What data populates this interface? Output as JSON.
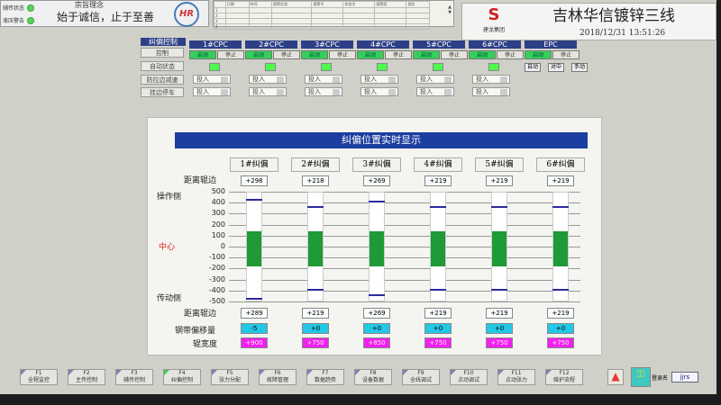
{
  "status": {
    "items": [
      {
        "label": "辅传状态",
        "color": "#5ed05e"
      },
      {
        "label": "液压警告",
        "color": "#5ed05e"
      }
    ]
  },
  "motto": {
    "heading": "宗旨理念",
    "text": "始于诚信，止于至善",
    "logo_text": "HR"
  },
  "alarm": {
    "headers": [
      "",
      "日期",
      "时间",
      "报警信息",
      "报警号",
      "状态字",
      "报警组",
      "类别"
    ],
    "rows": [
      "1",
      "2",
      "3",
      "4"
    ]
  },
  "header": {
    "brand": "建龙集团",
    "title": "吉林华信镀锌三线",
    "datetime": "2018/12/31  13:51:26"
  },
  "control": {
    "title": "纠偏控制",
    "units": [
      "1#CPC",
      "2#CPC",
      "3#CPC",
      "4#CPC",
      "5#CPC",
      "6#CPC",
      "EPC"
    ],
    "row_labels": [
      "控制",
      "自动状态",
      "防拉边减速",
      "挂边停车"
    ],
    "start": "启动",
    "stop": "停止",
    "engage": "投入",
    "epc_modes": [
      "自动",
      "对中",
      "手动"
    ]
  },
  "panel": {
    "title": "纠偏位置实时显示",
    "channels": [
      "1#纠偏",
      "2#纠偏",
      "3#纠偏",
      "4#纠偏",
      "5#纠偏",
      "6#纠偏"
    ],
    "labels": {
      "dist_top": "距离辊边",
      "op_side": "操作侧",
      "center": "中心",
      "drive_side": "传动侧",
      "dist_bottom": "距离辊边",
      "offset": "钢带偏移量",
      "width": "辊宽度"
    },
    "ticks": [
      "500",
      "400",
      "300",
      "200",
      "100",
      "0",
      "-100",
      "-200",
      "-300",
      "-400",
      "-500"
    ],
    "dist_top": [
      "+298",
      "+218",
      "+269",
      "+219",
      "+219",
      "+219"
    ],
    "dist_bottom": [
      "+289",
      "+219",
      "+269",
      "+219",
      "+219",
      "+219"
    ],
    "offset": [
      "-5",
      "+0",
      "+0",
      "+0",
      "+0",
      "+0"
    ],
    "width": [
      "+900",
      "+750",
      "+850",
      "+750",
      "+750",
      "+750"
    ],
    "strip_width": [
      900,
      750,
      850,
      750,
      750,
      750
    ],
    "strip_offset": [
      -5,
      0,
      0,
      0,
      0,
      0
    ],
    "colors": {
      "strip": "#1e9a36",
      "edge": "#2a2aa0",
      "offset_box": "#22c8e6",
      "width_box": "#f020f0"
    }
  },
  "fkeys": [
    {
      "key": "F1",
      "label": "全程监控"
    },
    {
      "key": "F2",
      "label": "主传控制"
    },
    {
      "key": "F3",
      "label": "辅传控制"
    },
    {
      "key": "F4",
      "label": "纠偏控制"
    },
    {
      "key": "F5",
      "label": "张力分配"
    },
    {
      "key": "F6",
      "label": "故障管理"
    },
    {
      "key": "F7",
      "label": "数据趋势"
    },
    {
      "key": "F8",
      "label": "设备数据"
    },
    {
      "key": "F9",
      "label": "全线调试"
    },
    {
      "key": "F10",
      "label": "点动调试"
    },
    {
      "key": "F11",
      "label": "点动张力"
    },
    {
      "key": "F12",
      "label": "维护流程"
    }
  ],
  "login": {
    "label": "登录名",
    "user": "jjrs"
  }
}
